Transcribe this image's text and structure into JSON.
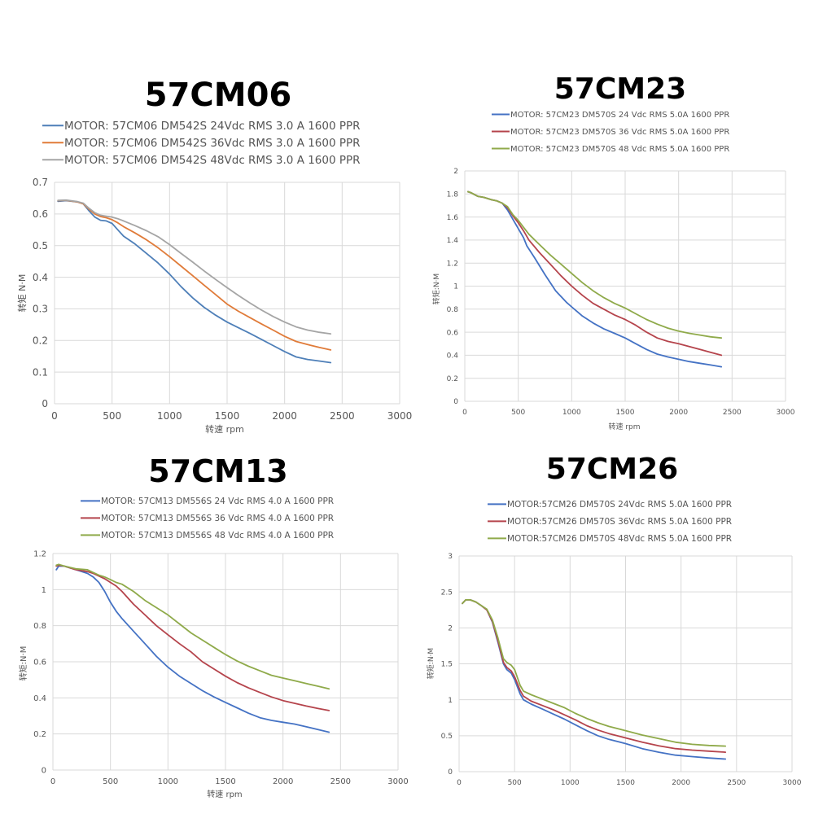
{
  "chart_data": [
    {
      "type": "line",
      "title": "57CM06",
      "xlabel": "转速 rpm",
      "ylabel": "转矩 N·M",
      "xlim": [
        0,
        3000
      ],
      "ylim": [
        0,
        0.7
      ],
      "xticks": [
        "0",
        "500",
        "1000",
        "1500",
        "2000",
        "2500",
        "3000"
      ],
      "yticks": [
        "0",
        "0.1",
        "0.2",
        "0.3",
        "0.4",
        "0.5",
        "0.6",
        "0.7"
      ],
      "grid": true,
      "legend_position": "top",
      "series": [
        {
          "name": "MOTOR: 57CM06 DM542S 24Vdc  RMS 3.0 A  1600 PPR",
          "color": "#4e7fb8",
          "x": [
            30,
            100,
            200,
            250,
            300,
            350,
            400,
            450,
            500,
            550,
            600,
            700,
            800,
            900,
            1000,
            1100,
            1200,
            1300,
            1400,
            1500,
            1600,
            1700,
            1800,
            1900,
            2000,
            2100,
            2200,
            2300,
            2400
          ],
          "y": [
            0.64,
            0.642,
            0.638,
            0.632,
            0.61,
            0.59,
            0.58,
            0.578,
            0.57,
            0.55,
            0.53,
            0.505,
            0.475,
            0.445,
            0.41,
            0.37,
            0.335,
            0.305,
            0.28,
            0.258,
            0.24,
            0.222,
            0.203,
            0.184,
            0.165,
            0.148,
            0.14,
            0.135,
            0.13
          ]
        },
        {
          "name": "MOTOR: 57CM06 DM542S 36Vdc  RMS 3.0 A  1600 PPR",
          "color": "#e07b39",
          "x": [
            30,
            100,
            200,
            250,
            300,
            350,
            400,
            450,
            500,
            550,
            600,
            700,
            800,
            900,
            1000,
            1100,
            1200,
            1300,
            1400,
            1500,
            1600,
            1700,
            1800,
            1900,
            2000,
            2100,
            2200,
            2300,
            2400
          ],
          "y": [
            0.642,
            0.643,
            0.638,
            0.632,
            0.615,
            0.6,
            0.592,
            0.588,
            0.582,
            0.572,
            0.56,
            0.54,
            0.518,
            0.493,
            0.465,
            0.435,
            0.405,
            0.375,
            0.345,
            0.315,
            0.292,
            0.272,
            0.252,
            0.233,
            0.213,
            0.197,
            0.187,
            0.178,
            0.17
          ]
        },
        {
          "name": "MOTOR: 57CM06 DM542S 48Vdc  RMS 3.0 A  1600 PPR",
          "color": "#a5a5a5",
          "x": [
            30,
            100,
            200,
            250,
            300,
            350,
            400,
            450,
            500,
            550,
            600,
            700,
            800,
            900,
            1000,
            1100,
            1200,
            1300,
            1400,
            1500,
            1600,
            1700,
            1800,
            1900,
            2000,
            2100,
            2200,
            2300,
            2400
          ],
          "y": [
            0.643,
            0.644,
            0.639,
            0.634,
            0.618,
            0.604,
            0.596,
            0.593,
            0.59,
            0.585,
            0.578,
            0.563,
            0.547,
            0.528,
            0.503,
            0.475,
            0.448,
            0.42,
            0.393,
            0.367,
            0.342,
            0.318,
            0.296,
            0.276,
            0.258,
            0.243,
            0.233,
            0.226,
            0.221
          ]
        }
      ]
    },
    {
      "type": "line",
      "title": "57CM23",
      "xlabel": "转速 rpm",
      "ylabel": "转矩:N·M",
      "xlim": [
        0,
        3000
      ],
      "ylim": [
        0,
        2
      ],
      "xticks": [
        "0",
        "500",
        "1000",
        "1500",
        "2000",
        "2500",
        "3000"
      ],
      "yticks": [
        "0",
        "0.2",
        "0.4",
        "0.6",
        "0.8",
        "1",
        "1.2",
        "1.4",
        "1.6",
        "1.8",
        "2"
      ],
      "grid": true,
      "legend_position": "top",
      "series": [
        {
          "name": "MOTOR: 57CM23 DM570S 24 Vdc  RMS 5.0A  1600 PPR",
          "color": "#4472c4",
          "x": [
            30,
            60,
            120,
            180,
            250,
            300,
            350,
            400,
            450,
            500,
            550,
            580,
            650,
            750,
            850,
            950,
            1000,
            1100,
            1200,
            1300,
            1400,
            1500,
            1600,
            1700,
            1800,
            1900,
            2000,
            2100,
            2200,
            2300,
            2400
          ],
          "y": [
            1.82,
            1.81,
            1.78,
            1.77,
            1.75,
            1.74,
            1.72,
            1.66,
            1.58,
            1.5,
            1.42,
            1.35,
            1.25,
            1.1,
            0.96,
            0.86,
            0.82,
            0.74,
            0.68,
            0.63,
            0.59,
            0.55,
            0.5,
            0.45,
            0.41,
            0.385,
            0.365,
            0.345,
            0.33,
            0.315,
            0.3
          ]
        },
        {
          "name": "MOTOR: 57CM23 DM570S 36 Vdc  RMS 5.0A  1600 PPR",
          "color": "#b5444c",
          "x": [
            30,
            60,
            120,
            180,
            250,
            300,
            350,
            400,
            450,
            500,
            550,
            600,
            700,
            800,
            900,
            1000,
            1100,
            1200,
            1300,
            1400,
            1500,
            1600,
            1700,
            1800,
            1900,
            2000,
            2100,
            2200,
            2300,
            2400
          ],
          "y": [
            1.82,
            1.81,
            1.78,
            1.77,
            1.75,
            1.74,
            1.72,
            1.68,
            1.61,
            1.55,
            1.48,
            1.4,
            1.29,
            1.19,
            1.09,
            1.0,
            0.92,
            0.85,
            0.8,
            0.75,
            0.71,
            0.66,
            0.6,
            0.55,
            0.52,
            0.5,
            0.475,
            0.45,
            0.425,
            0.4
          ]
        },
        {
          "name": "MOTOR: 57CM23 DM570S 48 Vdc  RMS 5.0A  1600 PPR",
          "color": "#8faa4a",
          "x": [
            30,
            60,
            120,
            180,
            250,
            300,
            350,
            400,
            450,
            500,
            550,
            600,
            700,
            800,
            900,
            1000,
            1100,
            1200,
            1300,
            1400,
            1500,
            1600,
            1700,
            1800,
            1900,
            2000,
            2100,
            2200,
            2300,
            2400
          ],
          "y": [
            1.82,
            1.81,
            1.78,
            1.77,
            1.75,
            1.74,
            1.72,
            1.69,
            1.62,
            1.57,
            1.51,
            1.45,
            1.36,
            1.27,
            1.19,
            1.11,
            1.03,
            0.96,
            0.9,
            0.85,
            0.81,
            0.76,
            0.71,
            0.67,
            0.635,
            0.61,
            0.59,
            0.575,
            0.56,
            0.55
          ]
        }
      ]
    },
    {
      "type": "line",
      "title": "57CM13",
      "xlabel": "转速 rpm",
      "ylabel": "转矩:N·M",
      "xlim": [
        0,
        3000
      ],
      "ylim": [
        0,
        1.2
      ],
      "xticks": [
        "0",
        "500",
        "1000",
        "1500",
        "2000",
        "2500",
        "3000"
      ],
      "yticks": [
        "0",
        "0.2",
        "0.4",
        "0.6",
        "0.8",
        "1",
        "1.2"
      ],
      "grid": true,
      "legend_position": "top",
      "series": [
        {
          "name": "MOTOR: 57CM13 DM556S 24 Vdc  RMS 4.0 A  1600 PPR",
          "color": "#4472c4",
          "x": [
            30,
            50,
            100,
            200,
            300,
            350,
            400,
            450,
            500,
            550,
            600,
            700,
            800,
            900,
            1000,
            1100,
            1200,
            1300,
            1400,
            1500,
            1600,
            1700,
            1800,
            1900,
            2000,
            2100,
            2200,
            2300,
            2400
          ],
          "y": [
            1.11,
            1.13,
            1.13,
            1.11,
            1.09,
            1.07,
            1.04,
            0.99,
            0.93,
            0.88,
            0.84,
            0.77,
            0.7,
            0.63,
            0.57,
            0.52,
            0.48,
            0.44,
            0.405,
            0.375,
            0.345,
            0.315,
            0.29,
            0.275,
            0.265,
            0.255,
            0.24,
            0.225,
            0.21
          ]
        },
        {
          "name": "MOTOR: 57CM13 DM556S 36 Vdc  RMS 4.0 A  1600 PPR",
          "color": "#b5444c",
          "x": [
            30,
            50,
            100,
            200,
            300,
            350,
            400,
            450,
            500,
            550,
            600,
            700,
            800,
            900,
            1000,
            1100,
            1200,
            1300,
            1400,
            1500,
            1600,
            1700,
            1800,
            1900,
            2000,
            2100,
            2200,
            2300,
            2400
          ],
          "y": [
            1.13,
            1.135,
            1.13,
            1.11,
            1.1,
            1.09,
            1.075,
            1.06,
            1.04,
            1.02,
            0.99,
            0.92,
            0.86,
            0.8,
            0.75,
            0.7,
            0.655,
            0.6,
            0.56,
            0.52,
            0.485,
            0.455,
            0.43,
            0.405,
            0.385,
            0.37,
            0.355,
            0.342,
            0.33
          ]
        },
        {
          "name": "MOTOR: 57CM13 DM556S 48 Vdc  RMS 4.0 A  1600 PPR",
          "color": "#8faa4a",
          "x": [
            30,
            50,
            100,
            200,
            300,
            350,
            400,
            450,
            500,
            550,
            600,
            700,
            800,
            900,
            1000,
            1100,
            1200,
            1300,
            1400,
            1500,
            1600,
            1700,
            1800,
            1900,
            2000,
            2100,
            2200,
            2300,
            2400
          ],
          "y": [
            1.135,
            1.14,
            1.13,
            1.115,
            1.11,
            1.095,
            1.08,
            1.07,
            1.055,
            1.04,
            1.03,
            0.99,
            0.94,
            0.9,
            0.86,
            0.81,
            0.76,
            0.72,
            0.68,
            0.64,
            0.605,
            0.575,
            0.55,
            0.525,
            0.51,
            0.495,
            0.48,
            0.465,
            0.45
          ]
        }
      ]
    },
    {
      "type": "line",
      "title": "57CM26",
      "xlabel": "",
      "ylabel": "转矩:N·M",
      "xlim": [
        0,
        3000
      ],
      "ylim": [
        0,
        3
      ],
      "xticks": [
        "0",
        "500",
        "1000",
        "1500",
        "2000",
        "2500",
        "3000"
      ],
      "yticks": [
        "0",
        "0.5",
        "1",
        "1.5",
        "2",
        "2.5",
        "3"
      ],
      "grid": true,
      "legend_position": "top",
      "series": [
        {
          "name": "MOTOR:57CM26   DM570S 24Vdc  RMS 5.0A  1600 PPR",
          "color": "#4472c4",
          "x": [
            30,
            60,
            100,
            150,
            200,
            250,
            300,
            350,
            400,
            430,
            470,
            500,
            550,
            580,
            650,
            750,
            850,
            950,
            1050,
            1150,
            1250,
            1350,
            1500,
            1650,
            1800,
            1950,
            2100,
            2250,
            2400
          ],
          "y": [
            2.34,
            2.39,
            2.39,
            2.36,
            2.31,
            2.25,
            2.08,
            1.8,
            1.5,
            1.42,
            1.37,
            1.28,
            1.08,
            1.0,
            0.94,
            0.87,
            0.8,
            0.73,
            0.65,
            0.57,
            0.5,
            0.45,
            0.39,
            0.32,
            0.27,
            0.23,
            0.21,
            0.19,
            0.175
          ]
        },
        {
          "name": "MOTOR:57CM26   DM570S 36Vdc  RMS 5.0A  1600 PPR",
          "color": "#b5444c",
          "x": [
            30,
            60,
            100,
            150,
            200,
            250,
            300,
            350,
            400,
            430,
            470,
            500,
            550,
            580,
            650,
            750,
            850,
            950,
            1050,
            1150,
            1250,
            1350,
            1500,
            1650,
            1800,
            1950,
            2100,
            2250,
            2400
          ],
          "y": [
            2.34,
            2.39,
            2.39,
            2.36,
            2.31,
            2.25,
            2.09,
            1.82,
            1.52,
            1.45,
            1.4,
            1.32,
            1.13,
            1.05,
            0.98,
            0.92,
            0.86,
            0.79,
            0.72,
            0.64,
            0.58,
            0.53,
            0.47,
            0.41,
            0.36,
            0.32,
            0.3,
            0.285,
            0.27
          ]
        },
        {
          "name": "MOTOR:57CM26   DM570S 48Vdc  RMS 5.0A  1600 PPR",
          "color": "#8faa4a",
          "x": [
            30,
            60,
            100,
            150,
            200,
            250,
            300,
            350,
            400,
            430,
            470,
            500,
            550,
            580,
            650,
            750,
            850,
            950,
            1050,
            1150,
            1250,
            1350,
            1500,
            1650,
            1800,
            1950,
            2100,
            2250,
            2400
          ],
          "y": [
            2.34,
            2.39,
            2.39,
            2.36,
            2.31,
            2.26,
            2.11,
            1.86,
            1.57,
            1.52,
            1.48,
            1.42,
            1.2,
            1.12,
            1.07,
            1.01,
            0.95,
            0.89,
            0.81,
            0.74,
            0.68,
            0.63,
            0.57,
            0.51,
            0.46,
            0.41,
            0.38,
            0.365,
            0.355
          ]
        }
      ]
    }
  ]
}
